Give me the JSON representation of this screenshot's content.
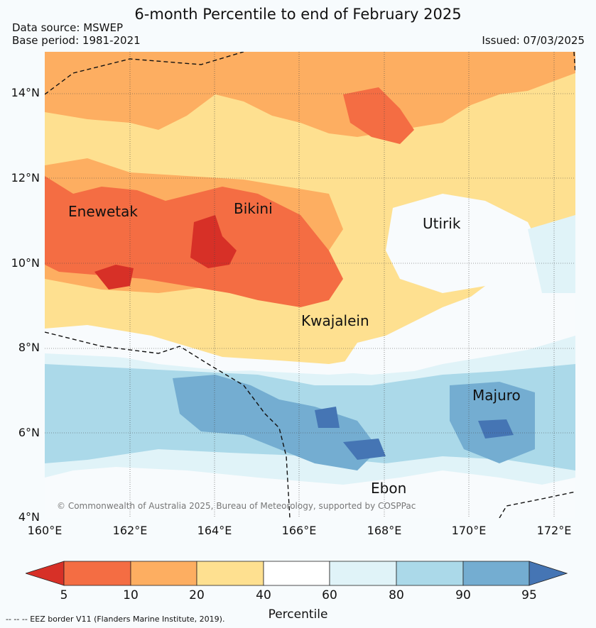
{
  "title": "6-month Percentile to end of February 2025",
  "data_source": "Data source: MSWEP",
  "base_period": "Base period: 1981-2021",
  "issued": "Issued: 07/03/2025",
  "lat_labels": [
    "14°N",
    "12°N",
    "10°N",
    "8°N",
    "6°N",
    "4°N"
  ],
  "lon_labels": [
    "160°E",
    "162°E",
    "164°E",
    "166°E",
    "168°E",
    "170°E",
    "172°E"
  ],
  "places": {
    "enewetak": "Enewetak",
    "bikini": "Bikini",
    "utirik": "Utirik",
    "kwajalein": "Kwajalein",
    "majuro": "Majuro",
    "ebon": "Ebon"
  },
  "credit": "© Commonwealth of Australia 2025, Bureau of Meteorology, supported by COSPPac",
  "colorbar": {
    "ticks": [
      "5",
      "10",
      "20",
      "40",
      "60",
      "80",
      "90",
      "95"
    ],
    "label": "Percentile",
    "colors": [
      "#d73027",
      "#f46d43",
      "#fdae61",
      "#fee090",
      "#ffffff",
      "#e0f3f8",
      "#abd9e9",
      "#74add1",
      "#4575b4"
    ]
  },
  "eez_note": "--  --  -- EEZ border V11 (Flanders Marine Institute, 2019)."
}
